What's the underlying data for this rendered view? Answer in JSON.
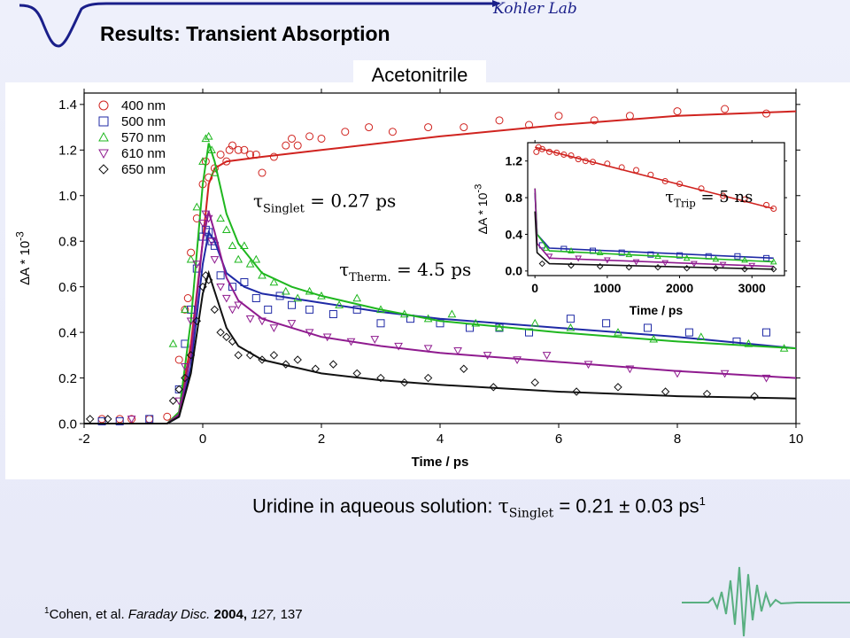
{
  "header": {
    "title": "Results: Transient Absorption",
    "lab": "Kohler Lab"
  },
  "solvent_label": "Acetonitrile",
  "summary": {
    "prefix": "Uridine in aqueous solution: ",
    "tau": "τ",
    "tau_sub": "Singlet",
    "value": " = 0.21 ± 0.03 ps",
    "ref_mark": "1"
  },
  "reference": {
    "mark": "1",
    "authors": "Cohen, et al. ",
    "journal": "Faraday Disc.",
    "year": " 2004,",
    "volume": " 127,",
    "pages": " 137"
  },
  "colors": {
    "red": "#d0231f",
    "blue": "#1f2aa6",
    "green": "#1fb71f",
    "purple": "#8f1b8f",
    "black": "#111111",
    "accent": "#1a1f8a"
  },
  "chart_data": [
    {
      "type": "scatter",
      "xlabel": "Time / ps",
      "ylabel": "ΔA * 10",
      "ylabel_exp": "-3",
      "xlim": [
        -2,
        10
      ],
      "ylim": [
        0,
        1.45
      ],
      "xticks": [
        "-2",
        "0",
        "2",
        "4",
        "6",
        "8",
        "10"
      ],
      "yticks": [
        "0.0",
        "0.2",
        "0.4",
        "0.6",
        "0.8",
        "1.0",
        "1.2",
        "1.4"
      ],
      "legend_position": "top-left",
      "series": [
        {
          "name": "400 nm",
          "marker": "circle",
          "color": "#d0231f",
          "x": [
            -1.7,
            -1.4,
            -1.2,
            -0.9,
            -0.6,
            -0.4,
            -0.3,
            -0.25,
            -0.2,
            -0.1,
            0.0,
            0.05,
            0.1,
            0.2,
            0.3,
            0.4,
            0.45,
            0.5,
            0.6,
            0.7,
            0.8,
            0.9,
            1.0,
            1.2,
            1.4,
            1.5,
            1.6,
            1.8,
            2.0,
            2.4,
            2.8,
            3.2,
            3.8,
            4.4,
            5.0,
            5.5,
            6.0,
            6.6,
            7.2,
            8.0,
            8.8,
            9.5
          ],
          "y": [
            0.02,
            0.02,
            0.02,
            0.02,
            0.03,
            0.28,
            0.5,
            0.55,
            0.75,
            0.9,
            1.05,
            1.15,
            1.08,
            1.12,
            1.18,
            1.15,
            1.2,
            1.22,
            1.2,
            1.2,
            1.18,
            1.18,
            1.1,
            1.17,
            1.22,
            1.25,
            1.22,
            1.26,
            1.25,
            1.28,
            1.3,
            1.28,
            1.3,
            1.3,
            1.33,
            1.31,
            1.35,
            1.33,
            1.35,
            1.37,
            1.38,
            1.36
          ],
          "fit": [
            [
              -2,
              0
            ],
            [
              -0.6,
              0.0
            ],
            [
              -0.4,
              0.05
            ],
            [
              -0.2,
              0.35
            ],
            [
              0.0,
              0.8
            ],
            [
              0.1,
              1.05
            ],
            [
              0.2,
              1.12
            ],
            [
              0.4,
              1.15
            ],
            [
              1.0,
              1.17
            ],
            [
              2.0,
              1.2
            ],
            [
              4.0,
              1.26
            ],
            [
              6.0,
              1.31
            ],
            [
              8.0,
              1.35
            ],
            [
              10.0,
              1.37
            ]
          ]
        },
        {
          "name": "500 nm",
          "marker": "square",
          "color": "#1f2aa6",
          "x": [
            -1.7,
            -1.4,
            -0.9,
            -0.4,
            -0.3,
            -0.2,
            -0.1,
            0.0,
            0.05,
            0.1,
            0.15,
            0.2,
            0.3,
            0.5,
            0.7,
            0.9,
            1.1,
            1.3,
            1.5,
            1.8,
            2.2,
            2.6,
            3.0,
            3.5,
            4.0,
            4.5,
            5.0,
            5.5,
            6.2,
            6.8,
            7.5,
            8.2,
            9.0,
            9.5
          ],
          "y": [
            0.01,
            0.01,
            0.02,
            0.15,
            0.35,
            0.5,
            0.68,
            0.82,
            0.85,
            0.84,
            0.8,
            0.78,
            0.65,
            0.6,
            0.62,
            0.55,
            0.5,
            0.56,
            0.52,
            0.5,
            0.48,
            0.5,
            0.44,
            0.46,
            0.44,
            0.42,
            0.42,
            0.4,
            0.46,
            0.44,
            0.42,
            0.4,
            0.36,
            0.4
          ],
          "fit": [
            [
              -2,
              0
            ],
            [
              -0.6,
              0.0
            ],
            [
              -0.4,
              0.03
            ],
            [
              -0.2,
              0.25
            ],
            [
              0.0,
              0.7
            ],
            [
              0.1,
              0.84
            ],
            [
              0.2,
              0.8
            ],
            [
              0.4,
              0.66
            ],
            [
              0.7,
              0.6
            ],
            [
              1.0,
              0.57
            ],
            [
              2.0,
              0.53
            ],
            [
              3.0,
              0.49
            ],
            [
              4.0,
              0.46
            ],
            [
              6.0,
              0.42
            ],
            [
              8.0,
              0.38
            ],
            [
              10.0,
              0.33
            ]
          ]
        },
        {
          "name": "570 nm",
          "marker": "triangle-up",
          "color": "#1fb71f",
          "x": [
            -0.5,
            -0.3,
            -0.2,
            -0.1,
            0.0,
            0.05,
            0.1,
            0.15,
            0.2,
            0.3,
            0.4,
            0.5,
            0.6,
            0.7,
            0.8,
            0.9,
            1.0,
            1.2,
            1.4,
            1.6,
            1.8,
            2.0,
            2.3,
            2.6,
            3.0,
            3.4,
            3.8,
            4.2,
            4.6,
            5.0,
            5.6,
            6.2,
            7.0,
            7.6,
            8.4,
            9.2,
            9.8
          ],
          "y": [
            0.35,
            0.5,
            0.72,
            0.95,
            1.15,
            1.25,
            1.26,
            1.2,
            1.1,
            0.9,
            0.85,
            0.78,
            0.72,
            0.78,
            0.7,
            0.72,
            0.65,
            0.62,
            0.58,
            0.55,
            0.58,
            0.56,
            0.52,
            0.55,
            0.5,
            0.48,
            0.46,
            0.48,
            0.44,
            0.42,
            0.44,
            0.42,
            0.4,
            0.37,
            0.38,
            0.35,
            0.33
          ],
          "fit": [
            [
              -2,
              0
            ],
            [
              -0.6,
              0.0
            ],
            [
              -0.4,
              0.05
            ],
            [
              -0.2,
              0.45
            ],
            [
              0.0,
              1.05
            ],
            [
              0.1,
              1.23
            ],
            [
              0.2,
              1.15
            ],
            [
              0.4,
              0.92
            ],
            [
              0.6,
              0.79
            ],
            [
              1.0,
              0.66
            ],
            [
              1.5,
              0.6
            ],
            [
              2.0,
              0.56
            ],
            [
              3.0,
              0.5
            ],
            [
              4.0,
              0.45
            ],
            [
              6.0,
              0.4
            ],
            [
              8.0,
              0.36
            ],
            [
              10.0,
              0.33
            ]
          ]
        },
        {
          "name": "610 nm",
          "marker": "triangle-down",
          "color": "#8f1b8f",
          "x": [
            -1.2,
            -0.4,
            -0.3,
            -0.2,
            -0.1,
            0.0,
            0.05,
            0.1,
            0.15,
            0.2,
            0.3,
            0.4,
            0.5,
            0.6,
            0.8,
            1.0,
            1.2,
            1.5,
            1.8,
            2.1,
            2.5,
            2.9,
            3.3,
            3.8,
            4.3,
            4.8,
            5.3,
            5.8,
            6.5,
            7.2,
            8.0,
            8.8,
            9.5
          ],
          "y": [
            0.02,
            0.1,
            0.25,
            0.45,
            0.7,
            0.88,
            0.92,
            0.9,
            0.8,
            0.72,
            0.6,
            0.55,
            0.5,
            0.52,
            0.46,
            0.45,
            0.42,
            0.44,
            0.4,
            0.38,
            0.36,
            0.37,
            0.34,
            0.33,
            0.32,
            0.3,
            0.28,
            0.3,
            0.26,
            0.24,
            0.22,
            0.22,
            0.2
          ],
          "fit": [
            [
              -2,
              0
            ],
            [
              -0.6,
              0.0
            ],
            [
              -0.4,
              0.04
            ],
            [
              -0.2,
              0.3
            ],
            [
              0.0,
              0.8
            ],
            [
              0.1,
              0.93
            ],
            [
              0.2,
              0.84
            ],
            [
              0.4,
              0.64
            ],
            [
              0.6,
              0.54
            ],
            [
              1.0,
              0.46
            ],
            [
              2.0,
              0.38
            ],
            [
              3.0,
              0.34
            ],
            [
              4.0,
              0.31
            ],
            [
              6.0,
              0.27
            ],
            [
              8.0,
              0.23
            ],
            [
              10.0,
              0.2
            ]
          ]
        },
        {
          "name": "650 nm",
          "marker": "diamond",
          "color": "#111111",
          "x": [
            -1.9,
            -1.6,
            -0.5,
            -0.4,
            -0.3,
            -0.2,
            -0.1,
            0.0,
            0.05,
            0.1,
            0.2,
            0.3,
            0.4,
            0.5,
            0.6,
            0.8,
            1.0,
            1.2,
            1.4,
            1.6,
            1.9,
            2.2,
            2.6,
            3.0,
            3.4,
            3.8,
            4.4,
            4.9,
            5.6,
            6.3,
            7.0,
            7.8,
            8.5,
            9.3
          ],
          "y": [
            0.02,
            0.02,
            0.1,
            0.15,
            0.2,
            0.3,
            0.45,
            0.6,
            0.65,
            0.63,
            0.5,
            0.4,
            0.38,
            0.36,
            0.3,
            0.3,
            0.28,
            0.3,
            0.26,
            0.28,
            0.24,
            0.26,
            0.22,
            0.2,
            0.18,
            0.2,
            0.24,
            0.16,
            0.18,
            0.14,
            0.16,
            0.14,
            0.13,
            0.12
          ],
          "fit": [
            [
              -2,
              0
            ],
            [
              -0.6,
              0.0
            ],
            [
              -0.4,
              0.03
            ],
            [
              -0.2,
              0.22
            ],
            [
              0.0,
              0.57
            ],
            [
              0.1,
              0.66
            ],
            [
              0.2,
              0.58
            ],
            [
              0.4,
              0.42
            ],
            [
              0.6,
              0.34
            ],
            [
              1.0,
              0.28
            ],
            [
              2.0,
              0.22
            ],
            [
              3.0,
              0.19
            ],
            [
              4.0,
              0.17
            ],
            [
              6.0,
              0.14
            ],
            [
              8.0,
              0.12
            ],
            [
              10.0,
              0.11
            ]
          ]
        }
      ],
      "annotations": [
        {
          "tau": "τ",
          "sub": "Singlet",
          "text": " = 0.27 ps",
          "x": 0.85,
          "y": 0.95
        },
        {
          "tau": "τ",
          "sub": "Therm.",
          "text": " = 4.5 ps",
          "x": 2.3,
          "y": 0.65
        }
      ]
    },
    {
      "type": "scatter",
      "role": "inset",
      "xlabel": "Time / ps",
      "ylabel": "ΔA * 10",
      "ylabel_exp": "-3",
      "xlim": [
        -100,
        3450
      ],
      "ylim": [
        -0.05,
        1.4
      ],
      "xticks": [
        "0",
        "1000",
        "2000",
        "3000"
      ],
      "yticks": [
        "0.0",
        "0.4",
        "0.8",
        "1.2"
      ],
      "series": [
        {
          "name": "400 nm",
          "marker": "circle",
          "color": "#d0231f",
          "x": [
            20,
            50,
            100,
            200,
            300,
            400,
            500,
            600,
            700,
            800,
            1000,
            1200,
            1400,
            1600,
            1800,
            2000,
            2300,
            2600,
            2900,
            3200,
            3300
          ],
          "y": [
            1.3,
            1.35,
            1.33,
            1.3,
            1.29,
            1.27,
            1.26,
            1.22,
            1.2,
            1.19,
            1.17,
            1.13,
            1.1,
            1.05,
            0.98,
            0.95,
            0.9,
            0.82,
            0.78,
            0.72,
            0.68
          ],
          "fit": [
            [
              0,
              1.35
            ],
            [
              3300,
              0.68
            ]
          ]
        },
        {
          "name": "500 nm",
          "marker": "square",
          "color": "#1f2aa6",
          "x": [
            100,
            400,
            800,
            1200,
            1600,
            2000,
            2400,
            2800,
            3200
          ],
          "y": [
            0.28,
            0.24,
            0.22,
            0.2,
            0.18,
            0.17,
            0.16,
            0.16,
            0.14
          ],
          "fit": [
            [
              0,
              0.85
            ],
            [
              30,
              0.4
            ],
            [
              200,
              0.25
            ],
            [
              3300,
              0.14
            ]
          ]
        },
        {
          "name": "570 nm",
          "marker": "triangle-up",
          "color": "#1fb71f",
          "x": [
            150,
            500,
            900,
            1300,
            1700,
            2100,
            2500,
            2900,
            3300
          ],
          "y": [
            0.25,
            0.22,
            0.2,
            0.18,
            0.16,
            0.14,
            0.13,
            0.12,
            0.1
          ],
          "fit": [
            [
              0,
              0.9
            ],
            [
              30,
              0.4
            ],
            [
              200,
              0.22
            ],
            [
              3300,
              0.1
            ]
          ]
        },
        {
          "name": "610 nm",
          "marker": "triangle-down",
          "color": "#8f1b8f",
          "x": [
            200,
            600,
            1000,
            1400,
            1800,
            2200,
            2600,
            3000
          ],
          "y": [
            0.16,
            0.14,
            0.12,
            0.1,
            0.09,
            0.08,
            0.07,
            0.06
          ],
          "fit": [
            [
              0,
              0.9
            ],
            [
              30,
              0.3
            ],
            [
              200,
              0.14
            ],
            [
              3300,
              0.05
            ]
          ]
        },
        {
          "name": "650 nm",
          "marker": "diamond",
          "color": "#111111",
          "x": [
            100,
            500,
            900,
            1300,
            1700,
            2100,
            2500,
            2900,
            3300
          ],
          "y": [
            0.08,
            0.06,
            0.05,
            0.04,
            0.04,
            0.03,
            0.03,
            0.02,
            0.02
          ],
          "fit": [
            [
              0,
              0.65
            ],
            [
              30,
              0.2
            ],
            [
              200,
              0.08
            ],
            [
              3300,
              0.02
            ]
          ]
        }
      ],
      "annotations": [
        {
          "tau": "τ",
          "sub": "Trip",
          "text": " = 5 ns",
          "x": 1800,
          "y": 0.75
        }
      ]
    }
  ]
}
